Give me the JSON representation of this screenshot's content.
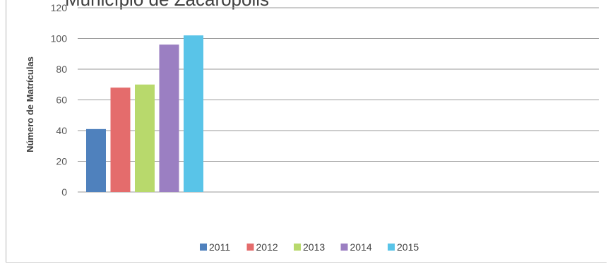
{
  "chart_data": {
    "type": "bar",
    "title": "Município de Zacarópolis",
    "ylabel": "Número de Matrículas",
    "xlabel": "",
    "ylim": [
      0,
      120
    ],
    "yticks": [
      0,
      20,
      40,
      60,
      80,
      100,
      120
    ],
    "grid": true,
    "legend_position": "bottom",
    "series": [
      {
        "name": "2011",
        "value": 41,
        "color": "#4f81bd"
      },
      {
        "name": "2012",
        "value": 68,
        "color": "#e46c6c"
      },
      {
        "name": "2013",
        "value": 70,
        "color": "#b8d96c"
      },
      {
        "name": "2014",
        "value": 96,
        "color": "#9b7fc2"
      },
      {
        "name": "2015",
        "value": 102,
        "color": "#59c4e8"
      }
    ]
  }
}
